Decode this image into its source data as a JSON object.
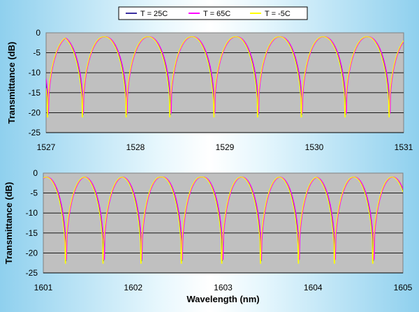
{
  "chart_data": [
    {
      "type": "line",
      "xlim": [
        1527,
        1531
      ],
      "ylim": [
        -25,
        0
      ],
      "x_ticks": [
        "1527",
        "1528",
        "1529",
        "1530",
        "1531"
      ],
      "y_ticks": [
        "0",
        "-5",
        "-10",
        "-15",
        "-20",
        "-25"
      ],
      "xlabel": "",
      "ylabel": "Transmittance (dB)",
      "grid": true,
      "max_transmittance_db": -1,
      "min_transmittance_db": -20.5,
      "notch_wavelengths_nm": [
        1527.02,
        1527.41,
        1527.9,
        1528.39,
        1528.88,
        1529.37,
        1529.86,
        1530.35,
        1530.84
      ],
      "series": [
        {
          "name": "T = 25C",
          "color": "#3a2fa0"
        },
        {
          "name": "T = 65C",
          "color": "#ff00ff"
        },
        {
          "name": "T = -5C",
          "color": "#ffff00"
        }
      ]
    },
    {
      "type": "line",
      "xlim": [
        1601,
        1605
      ],
      "ylim": [
        -25,
        0
      ],
      "x_ticks": [
        "1601",
        "1602",
        "1603",
        "1604",
        "1605"
      ],
      "y_ticks": [
        "0",
        "-5",
        "-10",
        "-15",
        "-20",
        "-25"
      ],
      "xlabel": "Wavelength (nm)",
      "ylabel": "Transmittance (dB)",
      "grid": true,
      "max_transmittance_db": -1,
      "min_transmittance_db": -22,
      "notch_wavelengths_nm": [
        1601.25,
        1601.67,
        1602.09,
        1602.54,
        1602.99,
        1603.42,
        1603.84,
        1604.24,
        1604.67
      ],
      "series": [
        {
          "name": "T = 25C",
          "color": "#3a2fa0"
        },
        {
          "name": "T = 65C",
          "color": "#ff00ff"
        },
        {
          "name": "T = -5C",
          "color": "#ffff00"
        }
      ]
    }
  ],
  "legend": {
    "items": [
      {
        "label": "T = 25C",
        "color": "#3a2fa0"
      },
      {
        "label": "T = 65C",
        "color": "#ff00ff"
      },
      {
        "label": "T = -5C",
        "color": "#ffff00"
      }
    ]
  },
  "colors": {
    "plot_area": "#c0c0c0"
  }
}
